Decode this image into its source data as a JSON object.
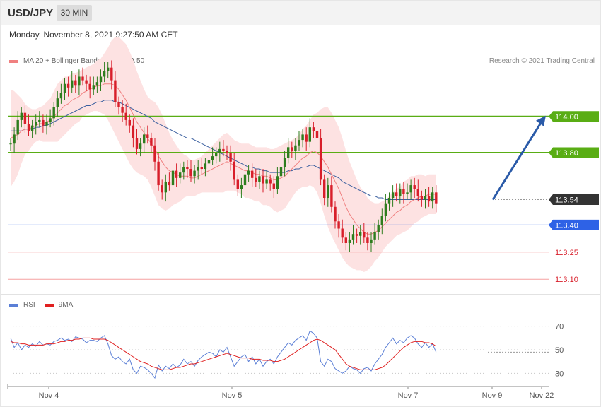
{
  "header": {
    "pair": "USD/JPY",
    "timeframe": "30 MIN"
  },
  "datetime": "Monday, November 8, 2021 9:27:50 AM CET",
  "legend_main": [
    {
      "label": "MA 20 + Bollinger Bands",
      "color": "#f08080"
    },
    {
      "label": "MA 50",
      "color": "#3a5f9f"
    }
  ],
  "copyright": "Research © 2021 Trading Central",
  "legend_rsi": [
    {
      "label": "RSI",
      "color": "#5b7fd6"
    },
    {
      "label": "9MA",
      "color": "#e02020"
    }
  ],
  "colors": {
    "up": "#2e7d1e",
    "down": "#d81e2a",
    "bollinger": "#fde2e2",
    "resistance": "#59ad14",
    "support": "#2e62e6",
    "target": "#f5a0a0",
    "current": "#333333",
    "arrow": "#2a5aa8"
  },
  "chart_data": [
    {
      "type": "candlestick",
      "title": "USD/JPY",
      "y_range": [
        113.05,
        114.3
      ],
      "x_ticks": [
        "Nov 4",
        "Nov 5",
        "Nov 7",
        "Nov 9",
        "Nov 22"
      ],
      "levels": [
        {
          "value": 114.0,
          "label": "114.00",
          "role": "resistance"
        },
        {
          "value": 113.8,
          "label": "113.80",
          "role": "resistance"
        },
        {
          "value": 113.54,
          "label": "113.54",
          "role": "current"
        },
        {
          "value": 113.4,
          "label": "113.40",
          "role": "support"
        },
        {
          "value": 113.25,
          "label": "113.25",
          "role": "target"
        },
        {
          "value": 113.1,
          "label": "113.10",
          "role": "target"
        }
      ],
      "close": [
        113.85,
        113.9,
        113.98,
        114.02,
        113.96,
        113.92,
        113.95,
        113.97,
        113.98,
        113.95,
        113.97,
        113.99,
        114.05,
        114.1,
        114.13,
        114.18,
        114.16,
        114.2,
        114.17,
        114.22,
        114.2,
        114.18,
        114.15,
        114.17,
        114.19,
        114.22,
        114.25,
        114.27,
        114.2,
        114.08,
        114.05,
        114.02,
        113.98,
        113.95,
        113.88,
        113.82,
        113.85,
        113.9,
        113.88,
        113.84,
        113.75,
        113.62,
        113.58,
        113.64,
        113.62,
        113.7,
        113.66,
        113.69,
        113.72,
        113.71,
        113.67,
        113.7,
        113.72,
        113.71,
        113.74,
        113.76,
        113.78,
        113.8,
        113.82,
        113.81,
        113.8,
        113.75,
        113.65,
        113.6,
        113.62,
        113.68,
        113.7,
        113.66,
        113.64,
        113.67,
        113.63,
        113.65,
        113.63,
        113.6,
        113.67,
        113.72,
        113.77,
        113.83,
        113.81,
        113.84,
        113.87,
        113.9,
        113.86,
        113.94,
        113.92,
        113.88,
        113.65,
        113.55,
        113.62,
        113.5,
        113.42,
        113.38,
        113.33,
        113.3,
        113.32,
        113.35,
        113.34,
        113.36,
        113.33,
        113.3,
        113.32,
        113.36,
        113.4,
        113.45,
        113.52,
        113.55,
        113.58,
        113.56,
        113.6,
        113.57,
        113.58,
        113.62,
        113.6,
        113.56,
        113.54,
        113.56,
        113.53,
        113.58,
        113.52
      ],
      "open_first": 113.85,
      "ma20": [
        113.88,
        113.89,
        113.9,
        113.92,
        113.93,
        113.93,
        113.94,
        113.95,
        113.96,
        113.96,
        113.97,
        113.98,
        114.0,
        114.02,
        114.04,
        114.06,
        114.07,
        114.09,
        114.1,
        114.11,
        114.13,
        114.14,
        114.15,
        114.16,
        114.17,
        114.17,
        114.18,
        114.18,
        114.18,
        114.17,
        114.15,
        114.12,
        114.09,
        114.05,
        114.01,
        113.97,
        113.94,
        113.91,
        113.88,
        113.85,
        113.82,
        113.78,
        113.75,
        113.72,
        113.7,
        113.69,
        113.68,
        113.67,
        113.67,
        113.67,
        113.66,
        113.66,
        113.67,
        113.68,
        113.69,
        113.7,
        113.71,
        113.72,
        113.73,
        113.74,
        113.75,
        113.74,
        113.73,
        113.72,
        113.71,
        113.7,
        113.7,
        113.69,
        113.68,
        113.68,
        113.67,
        113.67,
        113.66,
        113.65,
        113.65,
        113.66,
        113.67,
        113.69,
        113.71,
        113.73,
        113.75,
        113.77,
        113.78,
        113.8,
        113.81,
        113.8,
        113.78,
        113.75,
        113.72,
        113.68,
        113.64,
        113.6,
        113.55,
        113.5,
        113.46,
        113.43,
        113.4,
        113.38,
        113.36,
        113.35,
        113.35,
        113.36,
        113.37,
        113.39,
        113.41,
        113.43,
        113.45,
        113.47,
        113.48,
        113.5,
        113.51,
        113.53,
        113.54,
        113.55,
        113.56,
        113.56,
        113.57,
        113.57,
        113.57
      ],
      "ma50": [
        113.92,
        113.92,
        113.92,
        113.92,
        113.93,
        113.93,
        113.93,
        113.94,
        113.94,
        113.95,
        113.95,
        113.96,
        113.97,
        113.98,
        113.99,
        114.0,
        114.01,
        114.02,
        114.03,
        114.04,
        114.05,
        114.06,
        114.06,
        114.07,
        114.08,
        114.08,
        114.09,
        114.09,
        114.09,
        114.08,
        114.08,
        114.07,
        114.06,
        114.05,
        114.04,
        114.03,
        114.02,
        114.01,
        114.0,
        113.99,
        113.97,
        113.96,
        113.95,
        113.94,
        113.93,
        113.92,
        113.91,
        113.9,
        113.89,
        113.88,
        113.88,
        113.87,
        113.86,
        113.85,
        113.84,
        113.83,
        113.82,
        113.81,
        113.8,
        113.79,
        113.78,
        113.77,
        113.76,
        113.75,
        113.74,
        113.73,
        113.72,
        113.72,
        113.71,
        113.71,
        113.7,
        113.7,
        113.69,
        113.69,
        113.69,
        113.69,
        113.69,
        113.7,
        113.7,
        113.71,
        113.71,
        113.72,
        113.72,
        113.73,
        113.73,
        113.72,
        113.71,
        113.7,
        113.69,
        113.68,
        113.67,
        113.66,
        113.64,
        113.63,
        113.62,
        113.61,
        113.6,
        113.59,
        113.58,
        113.57,
        113.56,
        113.56,
        113.55,
        113.55,
        113.54,
        113.54,
        113.54,
        113.54,
        113.54,
        113.54,
        113.54,
        113.54,
        113.54,
        113.54,
        113.54,
        113.54,
        113.54,
        113.54,
        113.54
      ],
      "band_width": [
        0.27,
        0.25,
        0.22,
        0.18,
        0.14,
        0.12,
        0.1,
        0.09,
        0.09,
        0.1,
        0.11,
        0.12,
        0.14,
        0.16,
        0.16,
        0.16,
        0.15,
        0.15,
        0.14,
        0.14,
        0.13,
        0.13,
        0.13,
        0.13,
        0.14,
        0.15,
        0.17,
        0.2,
        0.24,
        0.27,
        0.29,
        0.3,
        0.31,
        0.31,
        0.3,
        0.28,
        0.26,
        0.24,
        0.23,
        0.24,
        0.26,
        0.27,
        0.26,
        0.24,
        0.21,
        0.18,
        0.16,
        0.14,
        0.12,
        0.11,
        0.1,
        0.1,
        0.1,
        0.1,
        0.11,
        0.12,
        0.13,
        0.14,
        0.15,
        0.16,
        0.16,
        0.15,
        0.14,
        0.14,
        0.14,
        0.15,
        0.15,
        0.15,
        0.15,
        0.15,
        0.16,
        0.16,
        0.16,
        0.17,
        0.18,
        0.18,
        0.18,
        0.17,
        0.16,
        0.15,
        0.15,
        0.16,
        0.17,
        0.18,
        0.2,
        0.22,
        0.26,
        0.3,
        0.33,
        0.34,
        0.34,
        0.34,
        0.33,
        0.31,
        0.29,
        0.27,
        0.25,
        0.23,
        0.22,
        0.2,
        0.18,
        0.16,
        0.15,
        0.14,
        0.13,
        0.13,
        0.13,
        0.13,
        0.13,
        0.14,
        0.14,
        0.14,
        0.13,
        0.13,
        0.12,
        0.11,
        0.11,
        0.11,
        0.11
      ],
      "forecast": {
        "from": 113.54,
        "to": 114.0
      }
    },
    {
      "type": "line",
      "title": "RSI",
      "y_range": [
        20,
        80
      ],
      "y_ticks": [
        30,
        50,
        70
      ],
      "series": [
        {
          "name": "RSI",
          "values": [
            60,
            52,
            56,
            50,
            54,
            52,
            55,
            53,
            57,
            54,
            55,
            54,
            57,
            58,
            60,
            58,
            59,
            57,
            61,
            60,
            59,
            56,
            58,
            58,
            57,
            60,
            62,
            55,
            45,
            42,
            44,
            40,
            38,
            42,
            33,
            30,
            36,
            35,
            33,
            30,
            26,
            37,
            32,
            36,
            34,
            38,
            35,
            37,
            42,
            38,
            40,
            36,
            41,
            44,
            46,
            48,
            47,
            44,
            50,
            48,
            52,
            44,
            36,
            40,
            44,
            46,
            40,
            44,
            38,
            42,
            36,
            40,
            42,
            38,
            44,
            48,
            52,
            56,
            54,
            58,
            60,
            62,
            58,
            66,
            64,
            60,
            40,
            36,
            42,
            40,
            34,
            32,
            30,
            32,
            36,
            34,
            33,
            30,
            34,
            35,
            32,
            38,
            42,
            46,
            52,
            56,
            60,
            55,
            58,
            56,
            60,
            62,
            60,
            55,
            52,
            56,
            52,
            55,
            48
          ]
        },
        {
          "name": "9MA",
          "values": [
            57,
            56,
            56,
            55,
            55,
            54,
            54,
            54,
            54,
            54,
            55,
            55,
            55,
            56,
            57,
            57,
            58,
            58,
            59,
            59,
            60,
            60,
            60,
            59,
            59,
            59,
            59,
            58,
            56,
            54,
            52,
            50,
            48,
            46,
            44,
            42,
            40,
            39,
            38,
            36,
            35,
            34,
            33,
            33,
            33,
            34,
            35,
            35,
            36,
            37,
            38,
            38,
            39,
            40,
            41,
            42,
            43,
            44,
            45,
            46,
            47,
            46,
            45,
            44,
            43,
            43,
            43,
            42,
            42,
            42,
            41,
            41,
            41,
            40,
            40,
            41,
            42,
            44,
            46,
            48,
            50,
            52,
            54,
            56,
            58,
            59,
            58,
            56,
            54,
            52,
            50,
            46,
            42,
            38,
            36,
            35,
            34,
            33,
            33,
            33,
            33,
            33,
            34,
            35,
            37,
            40,
            43,
            46,
            49,
            52,
            54,
            56,
            57,
            57,
            57,
            56,
            56,
            55,
            53
          ]
        }
      ]
    }
  ]
}
